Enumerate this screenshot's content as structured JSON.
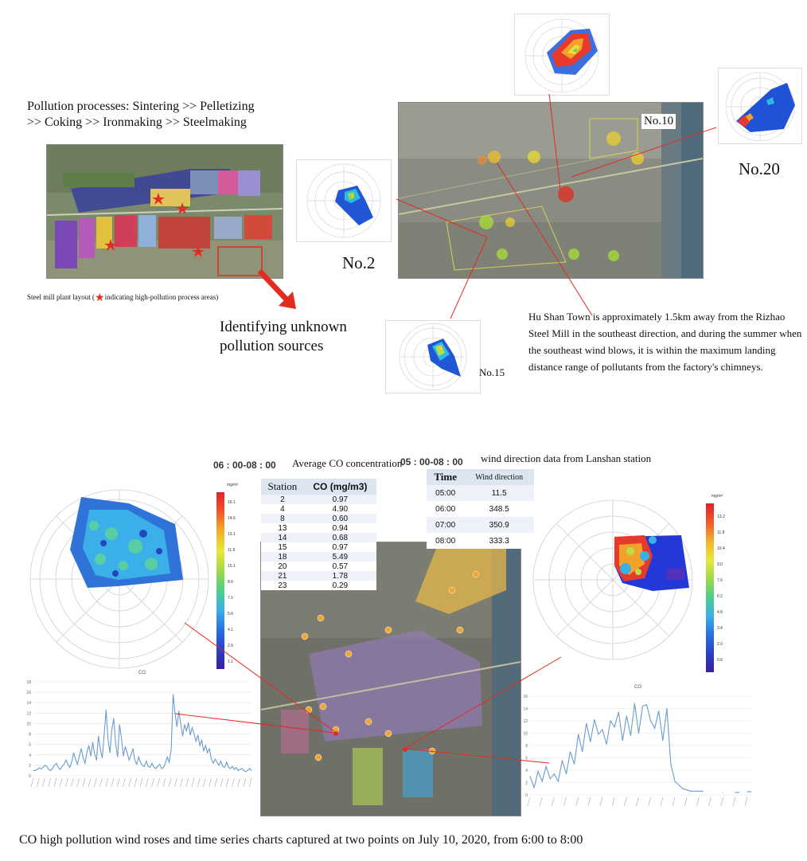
{
  "top": {
    "process_line1": "Pollution processes: Sintering >> Pelletizing",
    "process_line2": ">> Coking >> Ironmaking >> Steelmaking",
    "layout_caption_pre": "Steel mill plant layout (",
    "layout_caption_post": "indicating high-pollution process areas)",
    "arrow_label_line1": "Identifying unknown",
    "arrow_label_line2": "pollution sources",
    "station_labels": {
      "no2": "No.2",
      "no10": "No.10",
      "no15": "No.15",
      "no20": "No.20"
    },
    "description": "Hu Shan Town is approximately 1.5km away from the Rizhao Steel Mill in the southeast direction, and during the summer when the southeast wind blows, it is within the maximum landing distance range of pollutants from the factory's chimneys."
  },
  "bottom": {
    "time_left": "06 : 00-08 : 00",
    "time_right": "05 : 00-08 : 00",
    "avg_co_title": "Average CO concentration",
    "wind_title": "wind direction data from Lanshan station",
    "co_table": {
      "headers": [
        "Station",
        "CO (mg/m3)"
      ],
      "rows": [
        [
          "2",
          "0.97"
        ],
        [
          "4",
          "4.90"
        ],
        [
          "8",
          "0.60"
        ],
        [
          "13",
          "0.94"
        ],
        [
          "14",
          "0.68"
        ],
        [
          "15",
          "0.97"
        ],
        [
          "18",
          "5.49"
        ],
        [
          "20",
          "0.57"
        ],
        [
          "21",
          "1.78"
        ],
        [
          "23",
          "0.29"
        ]
      ]
    },
    "wind_table": {
      "headers": [
        "Time",
        "Wind direction"
      ],
      "rows": [
        [
          "05:00",
          "11.5"
        ],
        [
          "06:00",
          "348.5"
        ],
        [
          "07:00",
          "350.9"
        ],
        [
          "08:00",
          "333.3"
        ]
      ]
    },
    "colorbar_unit": "mg/m³",
    "colorbar_left_ticks": [
      "16.1",
      "14.6",
      "13.1",
      "11.6",
      "10.1",
      "8.6",
      "7.1",
      "5.6",
      "4.1",
      "2.6",
      "1.1"
    ],
    "colorbar_right_ticks": [
      "13.2",
      "11.8",
      "10.4",
      "9.0",
      "7.6",
      "6.2",
      "4.8",
      "3.4",
      "2.0",
      "0.6"
    ],
    "chart_title": "CO",
    "caption": "CO high pollution wind roses and time series charts captured at two points on July 10, 2020, from 6:00 to 8:00"
  },
  "chart_data": [
    {
      "type": "line",
      "title": "CO",
      "ylim": [
        0,
        18
      ],
      "yticks": [
        "0",
        "2",
        "4",
        "6",
        "8",
        "10",
        "12",
        "14",
        "16",
        "18"
      ],
      "values": [
        1,
        1,
        1.2,
        1.5,
        1.3,
        1.6,
        2,
        1.8,
        1.2,
        1,
        1.4,
        2,
        2.4,
        1.6,
        1.2,
        1.8,
        2.2,
        3,
        2.2,
        1.6,
        2.6,
        4.4,
        3.2,
        2.2,
        3.8,
        5.2,
        3.4,
        2.4,
        4.6,
        5.8,
        3.8,
        6.4,
        4.2,
        3,
        7.6,
        5,
        3.4,
        8,
        12.6,
        7,
        4.4,
        8.8,
        11,
        6,
        3.6,
        9.8,
        7.2,
        3.8,
        5.6,
        4.4,
        3,
        4,
        5.2,
        3,
        2.2,
        3.6,
        2.6,
        2,
        1.8,
        2.8,
        1.8,
        1.6,
        2.4,
        1.6,
        1.4,
        1.8,
        2.2,
        1.4,
        1.6,
        2.4,
        3.6,
        2.6,
        5,
        15.6,
        12,
        9.4,
        12.4,
        10,
        7.6,
        9.8,
        8.6,
        10.2,
        7.8,
        9.2,
        8,
        6.6,
        7.8,
        5.8,
        6.8,
        4.8,
        5.8,
        4.4,
        5.2,
        3.2,
        2.4,
        3.2,
        2.6,
        2,
        2.8,
        1.8,
        1.6,
        2.6,
        1.6,
        1.4,
        1.8,
        1.2,
        1.6,
        1,
        1.2,
        1.4,
        1,
        0.8,
        1,
        1.4,
        1
      ],
      "color": "#6b9bd1"
    },
    {
      "type": "line",
      "title": "CO",
      "ylim": [
        0,
        16
      ],
      "yticks": [
        "0",
        "2",
        "4",
        "6",
        "8",
        "10",
        "12",
        "14",
        "16"
      ],
      "values": [
        3,
        1.2,
        3.8,
        2.2,
        4.6,
        2.6,
        3.4,
        2.2,
        5.6,
        3.4,
        7,
        5,
        9.8,
        7,
        11.6,
        8.6,
        12.2,
        9.8,
        10.6,
        8.2,
        12,
        11,
        13.4,
        8.8,
        12.8,
        9.6,
        14.8,
        10,
        14.4,
        14.6,
        12,
        10.8,
        13.6,
        8.8,
        14,
        5,
        2.2,
        1.6,
        1,
        0.8,
        0.6,
        0.6,
        0.6,
        0.6,
        null,
        null,
        null,
        null,
        0.4,
        null,
        null,
        0.4,
        0.4,
        null,
        0.5,
        0.5
      ],
      "color": "#6b9bd1"
    }
  ],
  "colors": {
    "accent_red": "#e32b1f",
    "line_blue": "#6b9bd1",
    "table_header": "#dce6f1"
  }
}
